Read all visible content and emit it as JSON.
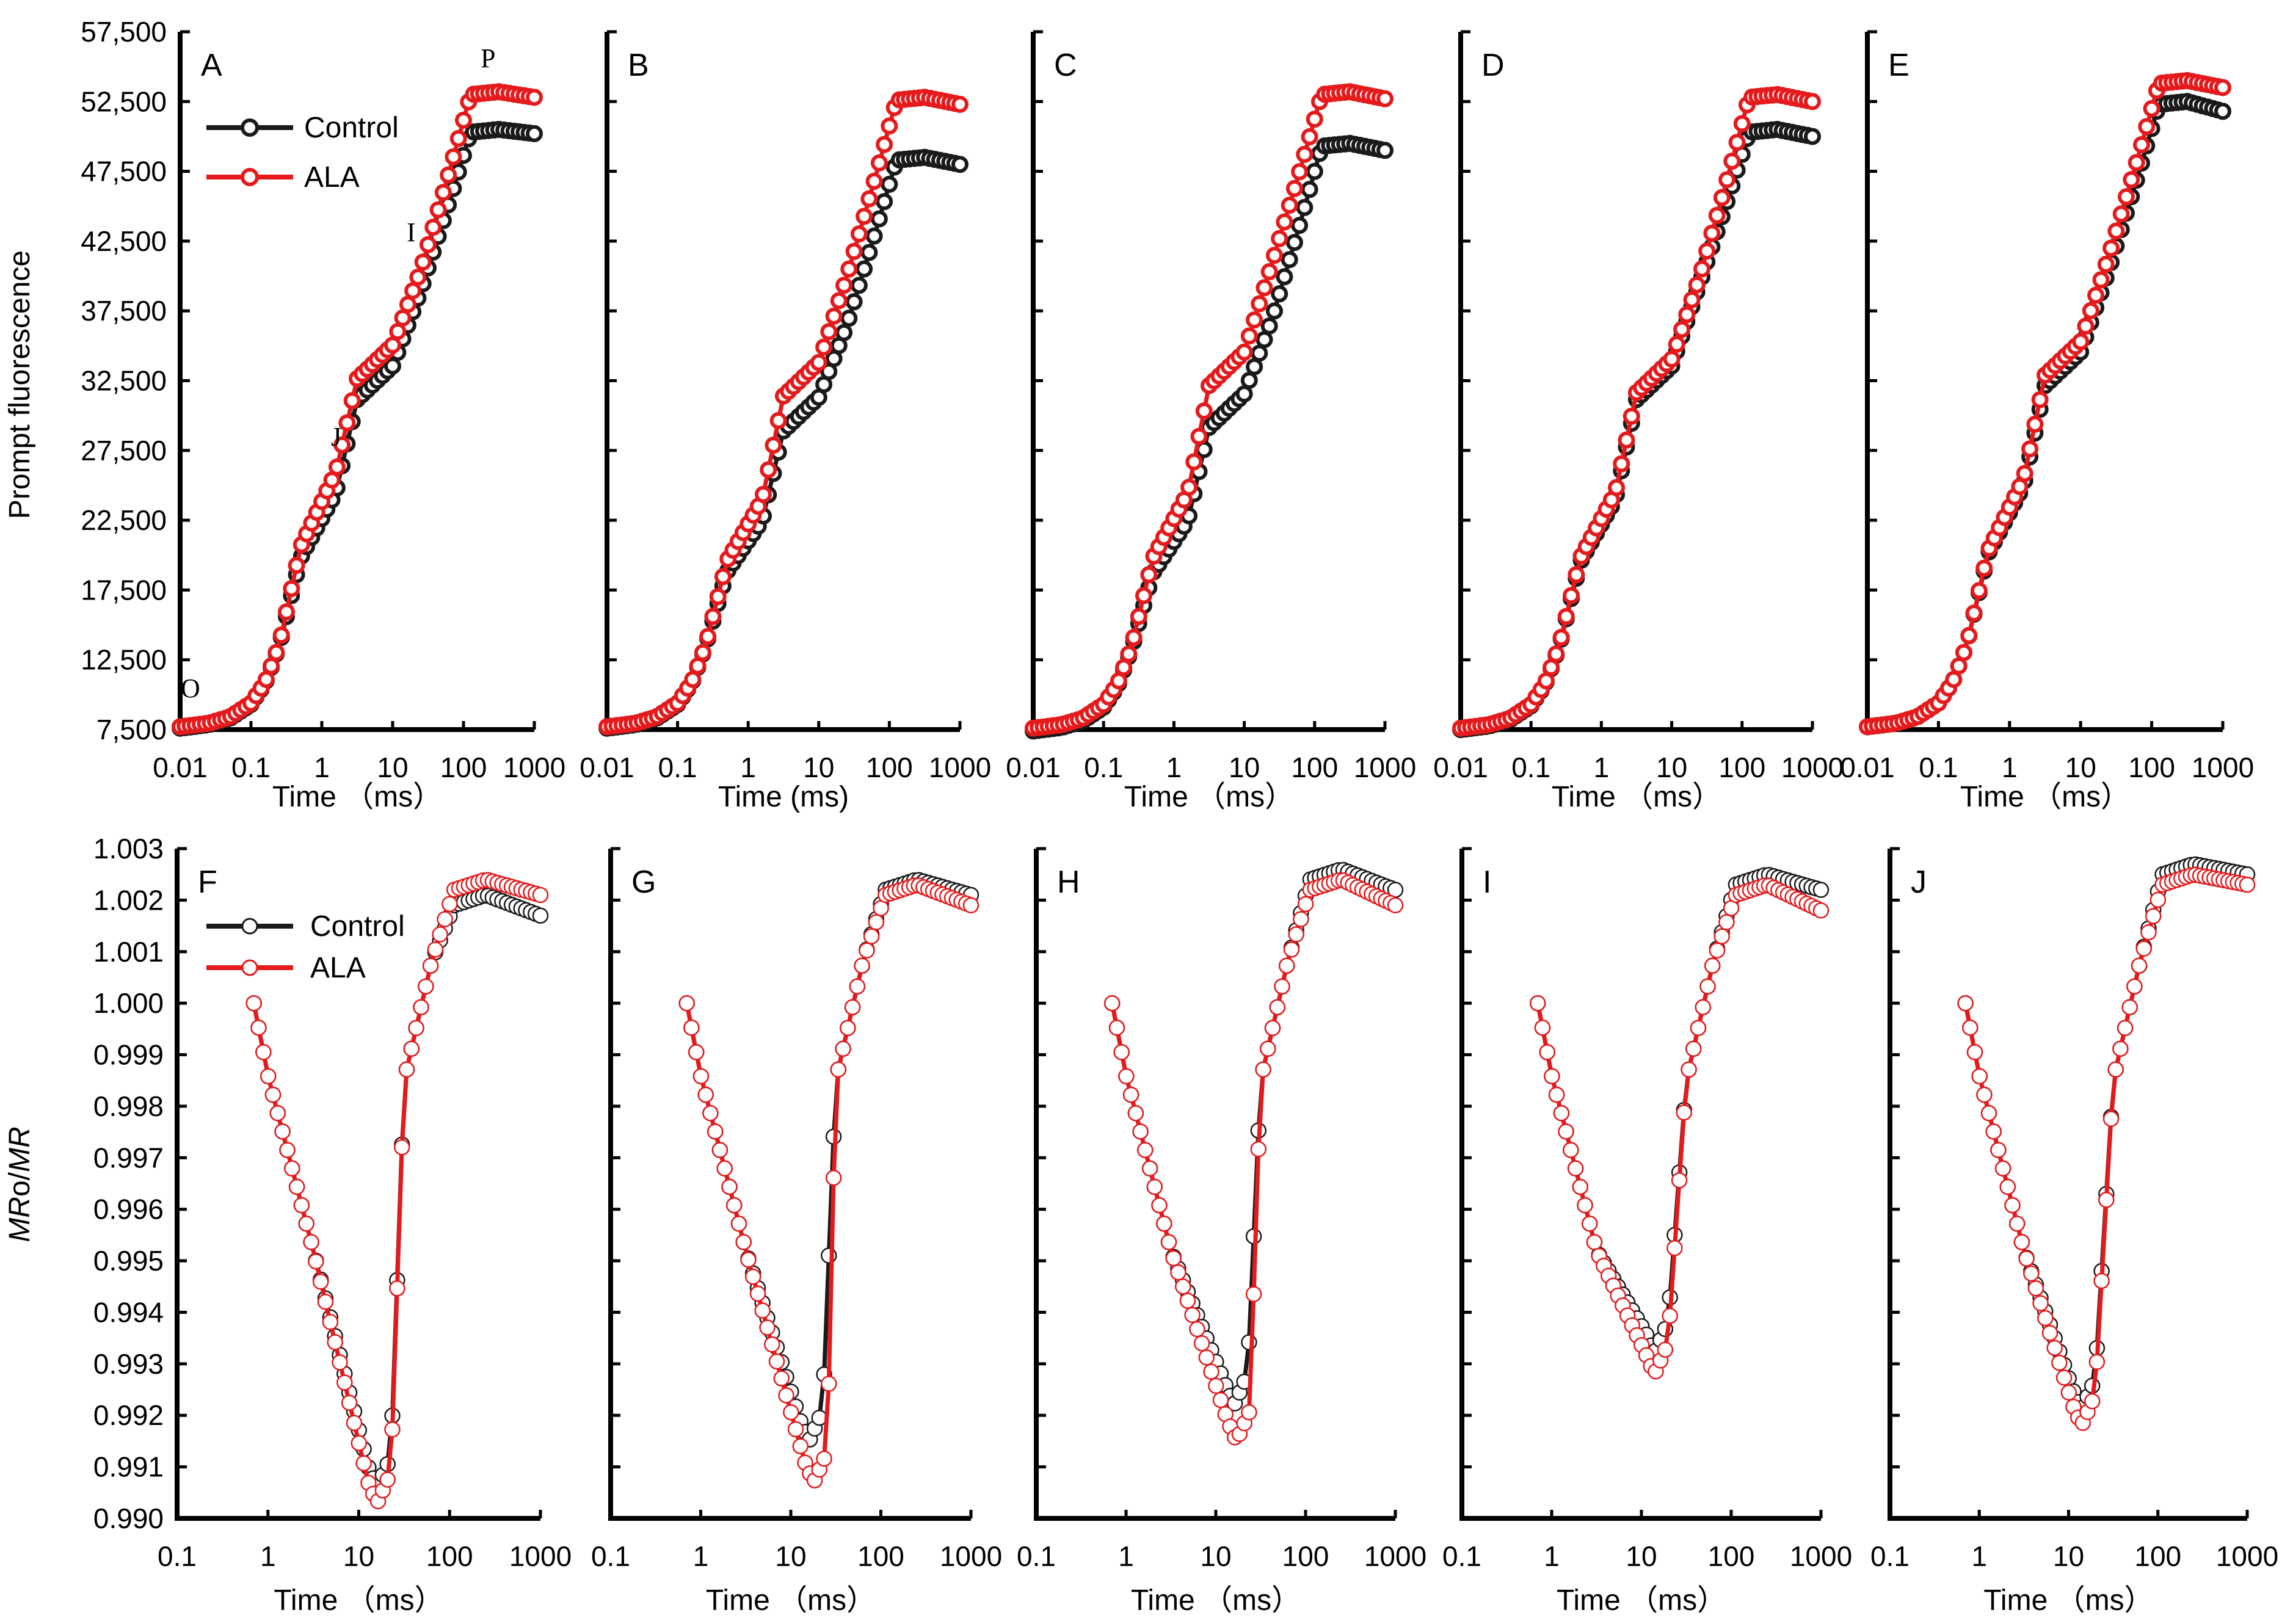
{
  "colors": {
    "control": "#1a1a1a",
    "ala": "#e41a1c",
    "axis": "#000000",
    "marker_fill": "#ffffff"
  },
  "figure": {
    "top_ylabel": "Prompt fluorescence",
    "bottom_ylabel_parts": {
      "italic1": "MR",
      "normal": "o/",
      "italic2": "MR"
    },
    "legend": {
      "control": "Control",
      "ala": "ALA"
    },
    "top_yticks": [
      "7,500",
      "12,500",
      "17,500",
      "22,500",
      "27,500",
      "32,500",
      "37,500",
      "42,500",
      "47,500",
      "52,500",
      "57,500"
    ],
    "bottom_yticks": [
      "0.990",
      "0.991",
      "0.992",
      "0.993",
      "0.994",
      "0.995",
      "0.996",
      "0.997",
      "0.998",
      "0.999",
      "1.000",
      "1.001",
      "1.002",
      "1.003"
    ],
    "phase_labels": {
      "o": "O",
      "j": "J",
      "i": "I",
      "p": "P"
    }
  },
  "chart_data": [
    {
      "type": "line",
      "panel": "A",
      "title": "A",
      "xlabel": "Time （ms）",
      "x_scale": "log",
      "xlim": [
        0.01,
        1000
      ],
      "ylim": [
        7500,
        57500
      ],
      "xticks": [
        "0.01",
        "0.1",
        "1",
        "10",
        "100",
        "1000"
      ],
      "control": {
        "F0": 7600,
        "J": 24500,
        "I": 39000,
        "P": 50500,
        "Pend": 50200
      },
      "ala": {
        "F0": 7700,
        "J": 26000,
        "I": 40500,
        "P": 53200,
        "Pend": 52800
      }
    },
    {
      "type": "line",
      "panel": "B",
      "title": "B",
      "xlabel": "Time (ms)",
      "x_scale": "log",
      "xlim": [
        0.01,
        1000
      ],
      "ylim": [
        7500,
        57500
      ],
      "xticks": [
        "0.01",
        "0.1",
        "1",
        "10",
        "100",
        "1000"
      ],
      "control": {
        "F0": 7600,
        "J": 22500,
        "I": 36500,
        "P": 48500,
        "Pend": 48000
      },
      "ala": {
        "F0": 7700,
        "J": 24000,
        "I": 40000,
        "P": 52800,
        "Pend": 52300
      }
    },
    {
      "type": "line",
      "panel": "C",
      "title": "C",
      "xlabel": "Time （ms）",
      "x_scale": "log",
      "xlim": [
        0.01,
        1000
      ],
      "ylim": [
        7500,
        57500
      ],
      "xticks": [
        "0.01",
        "0.1",
        "1",
        "10",
        "100",
        "1000"
      ],
      "control": {
        "F0": 7400,
        "J": 22500,
        "I": 37000,
        "P": 49500,
        "Pend": 49000
      },
      "ala": {
        "F0": 7600,
        "J": 24500,
        "I": 41000,
        "P": 53200,
        "Pend": 52700
      }
    },
    {
      "type": "line",
      "panel": "D",
      "title": "D",
      "xlabel": "Time （ms）",
      "x_scale": "log",
      "xlim": [
        0.01,
        1000
      ],
      "ylim": [
        7500,
        57500
      ],
      "xticks": [
        "0.01",
        "0.1",
        "1",
        "10",
        "100",
        "1000"
      ],
      "control": {
        "F0": 7500,
        "J": 24000,
        "I": 39500,
        "P": 50500,
        "Pend": 50000
      },
      "ala": {
        "F0": 7600,
        "J": 24500,
        "I": 40000,
        "P": 53000,
        "Pend": 52500
      }
    },
    {
      "type": "line",
      "panel": "E",
      "title": "E",
      "xlabel": "Time （ms）",
      "x_scale": "log",
      "xlim": [
        0.01,
        1000
      ],
      "ylim": [
        7500,
        57500
      ],
      "xticks": [
        "0.01",
        "0.1",
        "1",
        "10",
        "100",
        "1000"
      ],
      "control": {
        "F0": 7700,
        "J": 25000,
        "I": 40500,
        "P": 52500,
        "Pend": 51800
      },
      "ala": {
        "F0": 7700,
        "J": 25500,
        "I": 41500,
        "P": 54000,
        "Pend": 53500
      }
    },
    {
      "type": "scatter",
      "panel": "F",
      "title": "F",
      "xlabel": "Time （ms）",
      "x_scale": "log",
      "xlim": [
        0.1,
        1000
      ],
      "ylim": [
        0.99,
        1.003
      ],
      "xticks": [
        "0.1",
        "1",
        "10",
        "100",
        "1000"
      ],
      "control": {
        "min_t": 16,
        "min_v": 0.9906,
        "peak": 1.0021,
        "end": 1.0017
      },
      "ala": {
        "min_t": 16,
        "min_v": 0.9903,
        "peak": 1.0024,
        "end": 1.0021
      }
    },
    {
      "type": "scatter",
      "panel": "G",
      "title": "G",
      "xlabel": "Time （ms）",
      "x_scale": "log",
      "xlim": [
        0.1,
        1000
      ],
      "ylim": [
        0.99,
        1.003
      ],
      "xticks": [
        "0.1",
        "1",
        "10",
        "100",
        "1000"
      ],
      "control": {
        "min_t": 16,
        "min_v": 0.9915,
        "peak": 1.0024,
        "end": 1.0021
      },
      "ala": {
        "min_t": 18,
        "min_v": 0.9907,
        "peak": 1.0023,
        "end": 1.0019
      }
    },
    {
      "type": "scatter",
      "panel": "H",
      "title": "H",
      "xlabel": "Time （ms）",
      "x_scale": "log",
      "xlim": [
        0.1,
        1000
      ],
      "ylim": [
        0.99,
        1.003
      ],
      "xticks": [
        "0.1",
        "1",
        "10",
        "100",
        "1000"
      ],
      "control": {
        "min_t": 16,
        "min_v": 0.9922,
        "peak": 1.0026,
        "end": 1.0022
      },
      "ala": {
        "min_t": 17,
        "min_v": 0.9915,
        "peak": 1.0024,
        "end": 1.0019
      }
    },
    {
      "type": "scatter",
      "panel": "I",
      "title": "I",
      "xlabel": "Time （ms）",
      "x_scale": "log",
      "xlim": [
        0.1,
        1000
      ],
      "ylim": [
        0.99,
        1.003
      ],
      "xticks": [
        "0.1",
        "1",
        "10",
        "100",
        "1000"
      ],
      "control": {
        "min_t": 14,
        "min_v": 0.9932,
        "peak": 1.0025,
        "end": 1.0022
      },
      "ala": {
        "min_t": 14,
        "min_v": 0.9928,
        "peak": 1.0023,
        "end": 1.0018
      }
    },
    {
      "type": "scatter",
      "panel": "J",
      "title": "J",
      "xlabel": "Time （ms）",
      "x_scale": "log",
      "xlim": [
        0.1,
        1000
      ],
      "ylim": [
        0.99,
        1.003
      ],
      "xticks": [
        "0.1",
        "1",
        "10",
        "100",
        "1000"
      ],
      "control": {
        "min_t": 14,
        "min_v": 0.9921,
        "peak": 1.0027,
        "end": 1.0025
      },
      "ala": {
        "min_t": 14,
        "min_v": 0.9918,
        "peak": 1.0025,
        "end": 1.0023
      }
    }
  ]
}
